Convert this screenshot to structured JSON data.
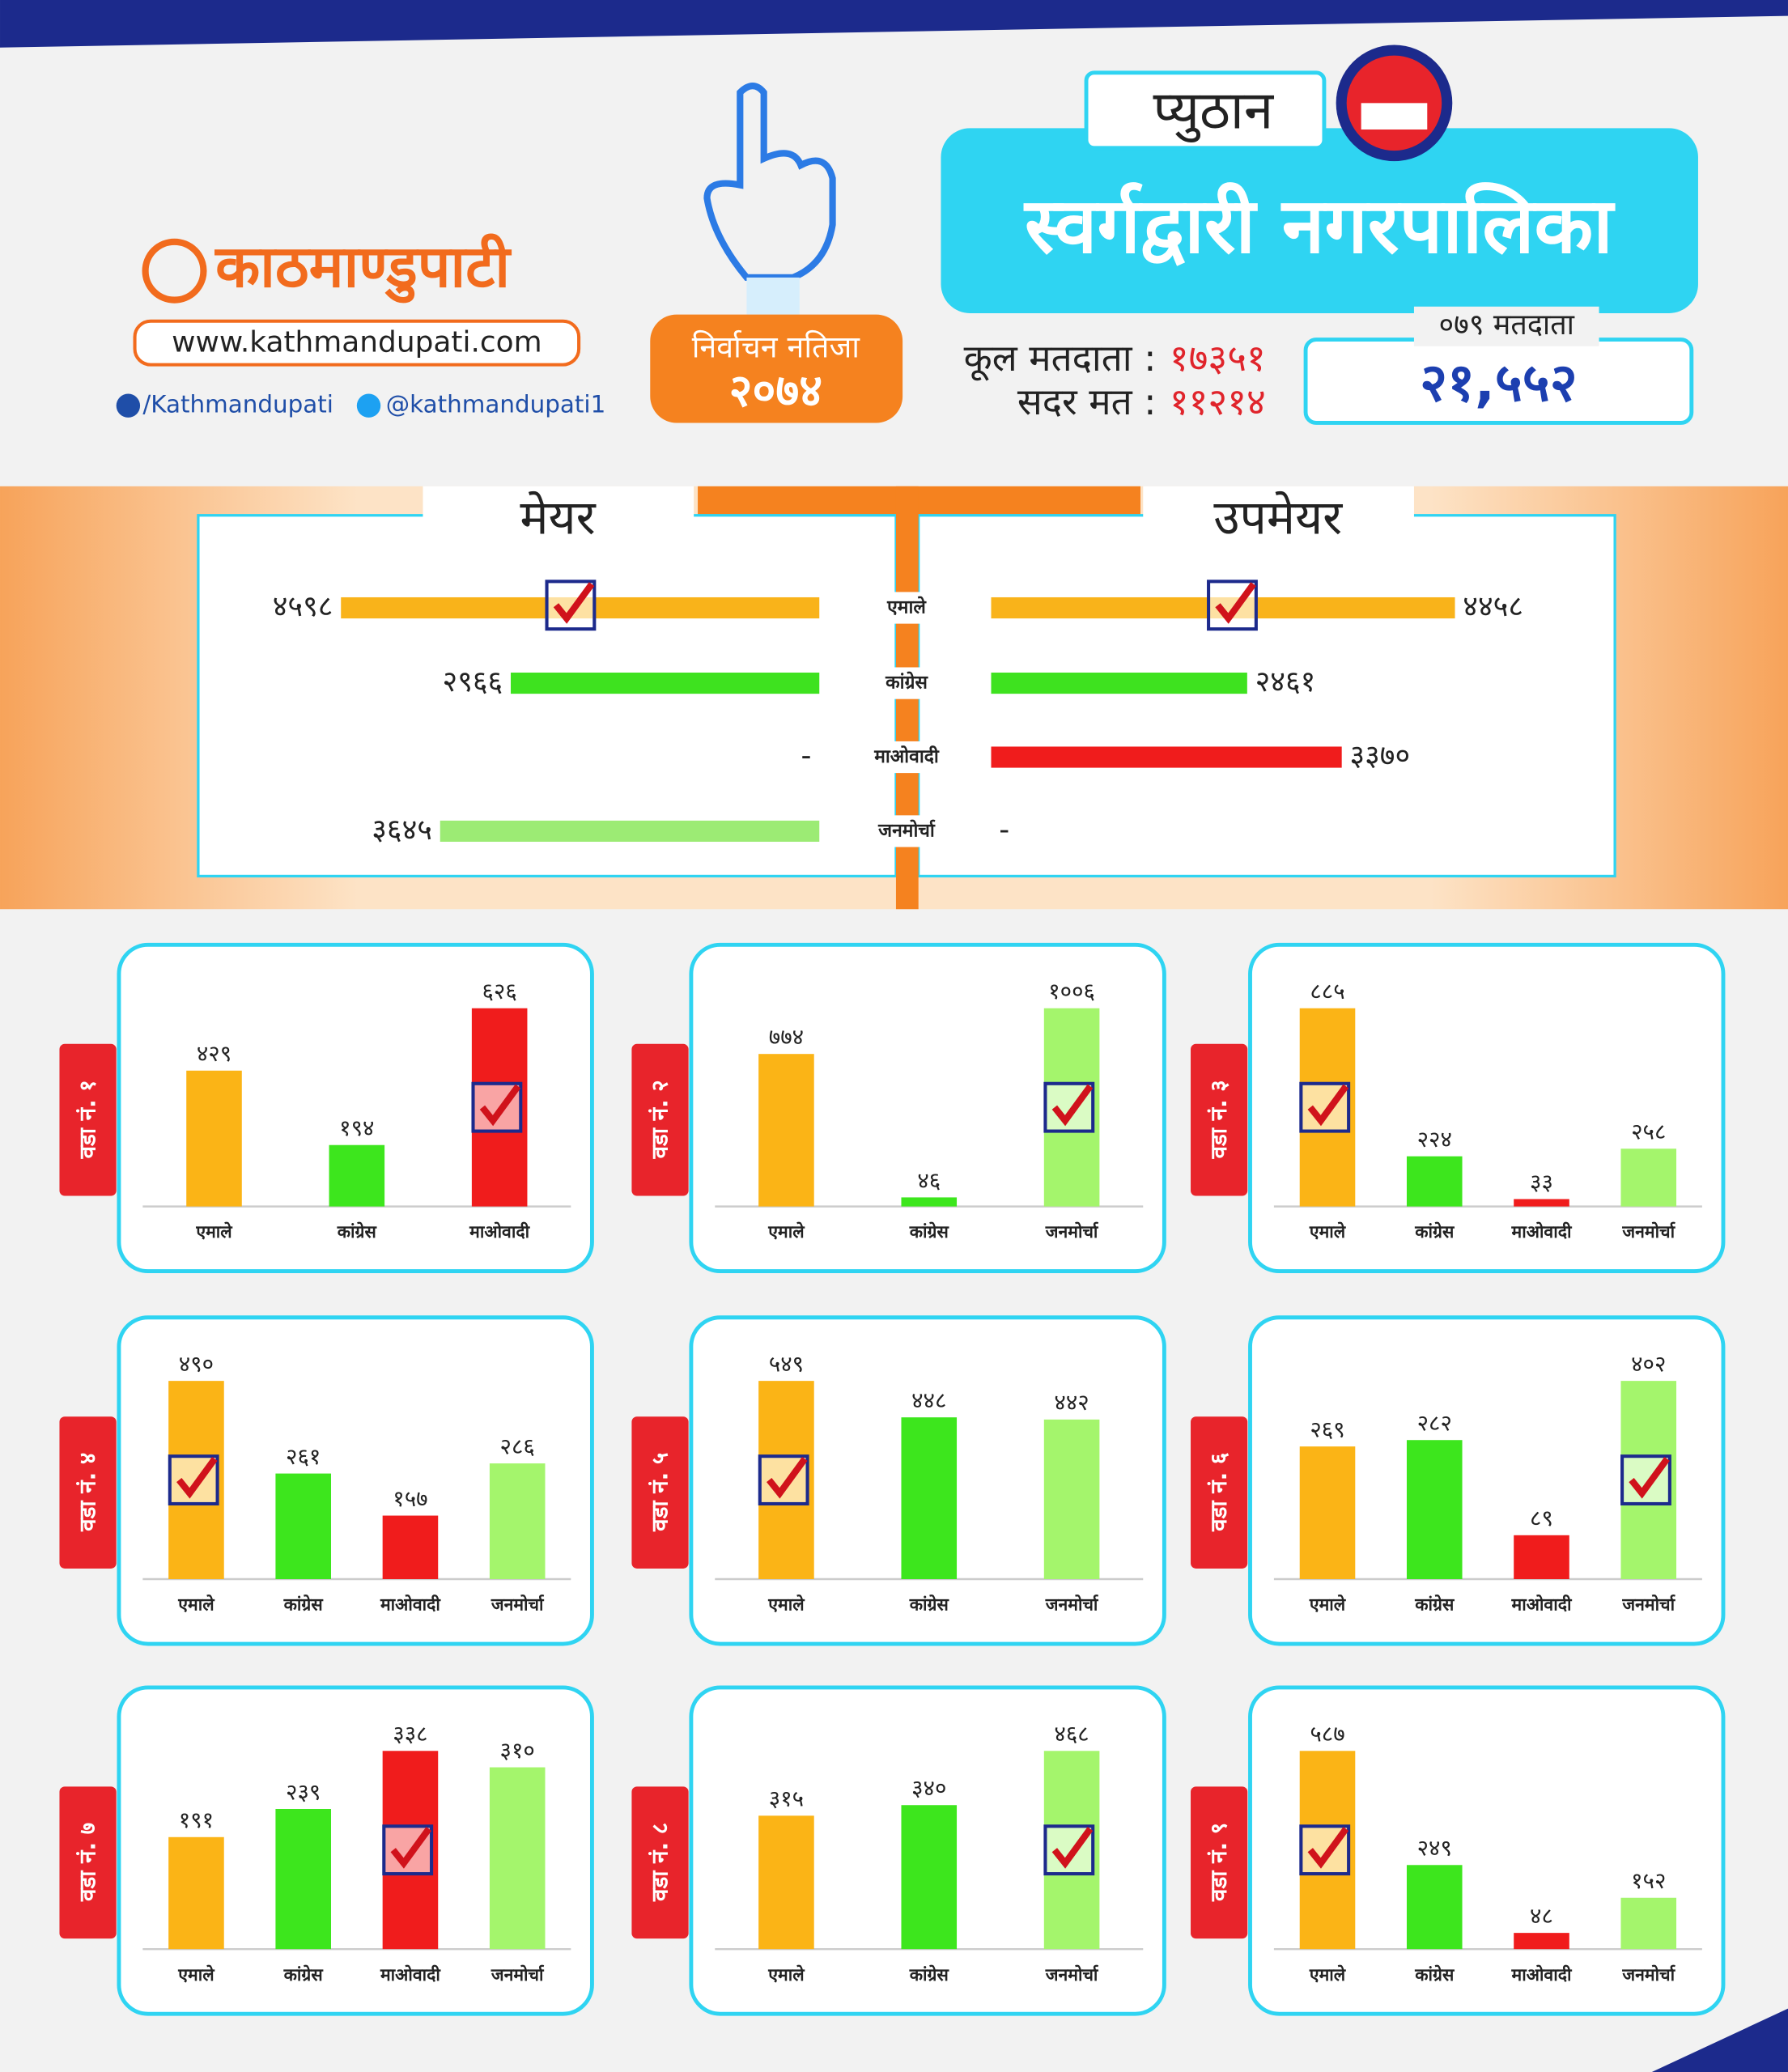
{
  "logo": {
    "name": "काठमाण्डुपाटी",
    "website": "www.kathmandupati.com",
    "facebook": "/Kathmandupati",
    "twitter": "@kathmandupati1"
  },
  "badge": {
    "title": "निर्वाचन नतिजा",
    "year": "२०७४"
  },
  "header": {
    "district": "प्युठान",
    "municipality": "स्वर्गद्वारी नगरपालिका",
    "total_voters_label": "कूल मतदाता :",
    "total_voters": "१७३५१",
    "valid_votes_label": "सदर मत :",
    "valid_votes": "११२१४",
    "voters_079_label": "०७९ मतदाता",
    "voters_079": "२१,५५२"
  },
  "chart_data": [
    {
      "type": "butterfly",
      "categories": [
        "एमाले",
        "कांग्रेस",
        "माओवादी",
        "जनमोर्चा"
      ],
      "colors": [
        "#f9b31a",
        "#3ee21f",
        "#f01c1c",
        "#9ceb74"
      ],
      "series": [
        {
          "name": "मेयर",
          "values": [
            4598,
            2966,
            null,
            3645
          ],
          "value_labels": [
            "४५९८",
            "२९६६",
            "-",
            "३६४५"
          ],
          "winner": "एमाले"
        },
        {
          "name": "उपमेयर",
          "values": [
            4458,
            2461,
            3370,
            null
          ],
          "value_labels": [
            "४४५८",
            "२४६१",
            "३३७०",
            "-"
          ],
          "winner": "एमाले"
        }
      ]
    },
    {
      "type": "bar",
      "title": "वडा नं. १",
      "categories": [
        "एमाले",
        "कांग्रेस",
        "माओवादी"
      ],
      "values": [
        429,
        194,
        626
      ],
      "value_labels": [
        "४२९",
        "१९४",
        "६२६"
      ],
      "colors": [
        "#fbb416",
        "#3de61d",
        "#f01c1c"
      ],
      "winner": "माओवादी"
    },
    {
      "type": "bar",
      "title": "वडा नं. २",
      "categories": [
        "एमाले",
        "कांग्रेस",
        "जनमोर्चा"
      ],
      "values": [
        774,
        46,
        1006
      ],
      "value_labels": [
        "७७४",
        "४६",
        "१००६"
      ],
      "colors": [
        "#fbb416",
        "#3de61d",
        "#a4f56c"
      ],
      "winner": "जनमोर्चा"
    },
    {
      "type": "bar",
      "title": "वडा नं. ३",
      "categories": [
        "एमाले",
        "कांग्रेस",
        "माओवादी",
        "जनमोर्चा"
      ],
      "values": [
        885,
        224,
        33,
        258
      ],
      "value_labels": [
        "८८५",
        "२२४",
        "३३",
        "२५८"
      ],
      "colors": [
        "#fbb416",
        "#3de61d",
        "#f01c1c",
        "#a4f56c"
      ],
      "winner": "एमाले"
    },
    {
      "type": "bar",
      "title": "वडा नं. ४",
      "categories": [
        "एमाले",
        "कांग्रेस",
        "माओवादी",
        "जनमोर्चा"
      ],
      "values": [
        490,
        261,
        157,
        286
      ],
      "value_labels": [
        "४९०",
        "२६१",
        "१५७",
        "२८६"
      ],
      "colors": [
        "#fbb416",
        "#3de61d",
        "#f01c1c",
        "#a4f56c"
      ],
      "winner": "एमाले"
    },
    {
      "type": "bar",
      "title": "वडा नं. ५",
      "categories": [
        "एमाले",
        "कांग्रेस",
        "जनमोर्चा"
      ],
      "values": [
        549,
        448,
        442
      ],
      "value_labels": [
        "५४९",
        "४४८",
        "४४२"
      ],
      "colors": [
        "#fbb416",
        "#3de61d",
        "#a4f56c"
      ],
      "winner": "एमाले"
    },
    {
      "type": "bar",
      "title": "वडा नं. ६",
      "categories": [
        "एमाले",
        "कांग्रेस",
        "माओवादी",
        "जनमोर्चा"
      ],
      "values": [
        269,
        282,
        89,
        402
      ],
      "value_labels": [
        "२६९",
        "२८२",
        "८९",
        "४०२"
      ],
      "colors": [
        "#fbb416",
        "#3de61d",
        "#f01c1c",
        "#a4f56c"
      ],
      "winner": "जनमोर्चा"
    },
    {
      "type": "bar",
      "title": "वडा नं. ७",
      "categories": [
        "एमाले",
        "कांग्रेस",
        "माओवादी",
        "जनमोर्चा"
      ],
      "values": [
        191,
        239,
        338,
        310
      ],
      "value_labels": [
        "१९१",
        "२३९",
        "३३८",
        "३१०"
      ],
      "colors": [
        "#fbb416",
        "#3de61d",
        "#f01c1c",
        "#a4f56c"
      ],
      "winner": "माओवादी"
    },
    {
      "type": "bar",
      "title": "वडा नं. ८",
      "categories": [
        "एमाले",
        "कांग्रेस",
        "जनमोर्चा"
      ],
      "values": [
        315,
        340,
        468
      ],
      "value_labels": [
        "३१५",
        "३४०",
        "४६८"
      ],
      "colors": [
        "#fbb416",
        "#3de61d",
        "#a4f56c"
      ],
      "winner": "जनमोर्चा"
    },
    {
      "type": "bar",
      "title": "वडा नं. ९",
      "categories": [
        "एमाले",
        "कांग्रेस",
        "माओवादी",
        "जनमोर्चा"
      ],
      "values": [
        587,
        249,
        48,
        152
      ],
      "value_labels": [
        "५८७",
        "२४९",
        "४८",
        "१५२"
      ],
      "colors": [
        "#fbb416",
        "#3de61d",
        "#f01c1c",
        "#a4f56c"
      ],
      "winner": "एमाले"
    }
  ]
}
